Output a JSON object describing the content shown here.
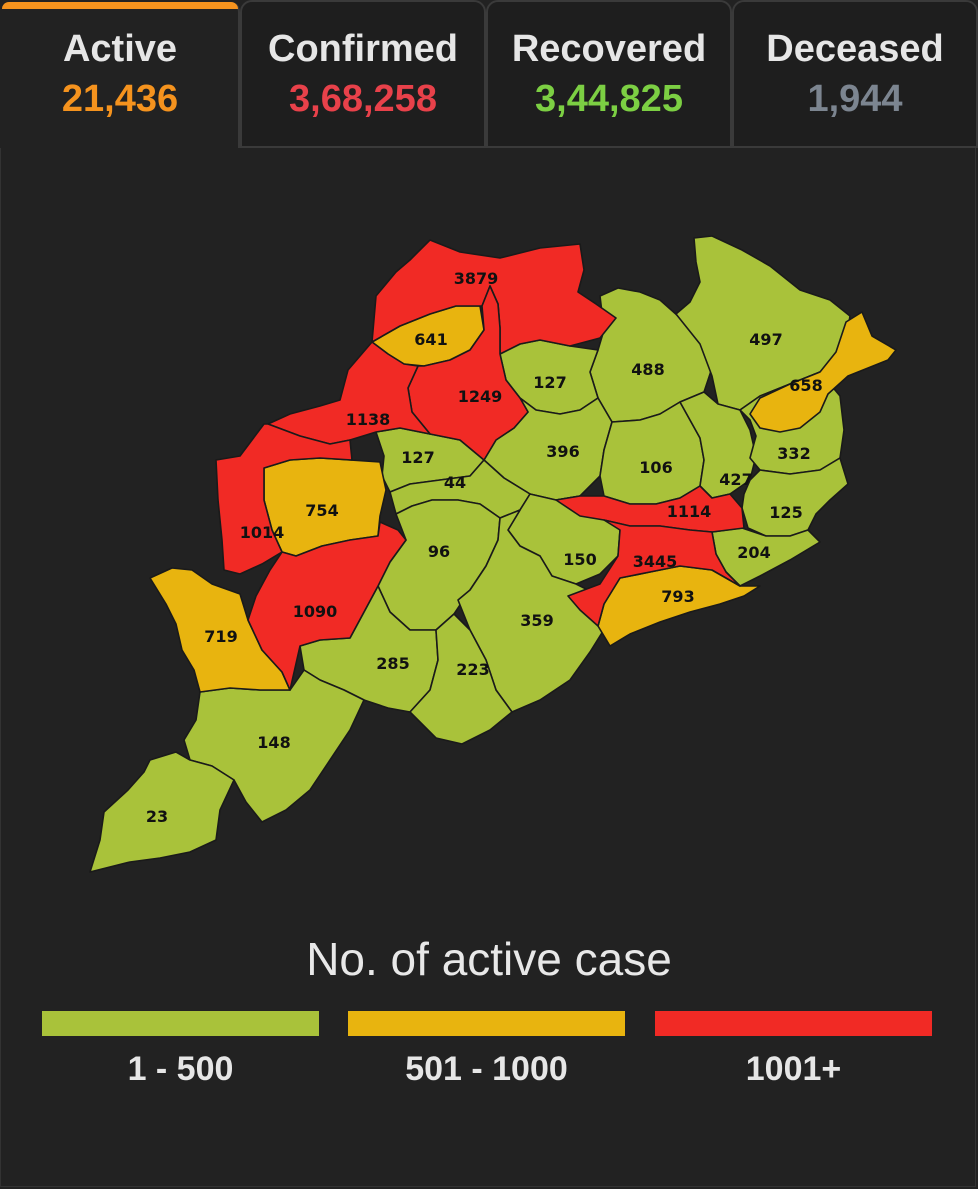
{
  "tabs": [
    {
      "label": "Active",
      "value": "21,436",
      "color": "#f5931e",
      "active": true
    },
    {
      "label": "Confirmed",
      "value": "3,68,258",
      "color": "#e8414a",
      "active": false
    },
    {
      "label": "Recovered",
      "value": "3,44,825",
      "color": "#7ccf43",
      "active": false
    },
    {
      "label": "Deceased",
      "value": "1,944",
      "color": "#7c8590",
      "active": false
    }
  ],
  "map": {
    "districts": [
      {
        "value": "3879",
        "category": "1001+"
      },
      {
        "value": "641",
        "category": "501 - 1000"
      },
      {
        "value": "1138",
        "category": "1001+"
      },
      {
        "value": "1249",
        "category": "1001+"
      },
      {
        "value": "127",
        "category": "1 - 500"
      },
      {
        "value": "488",
        "category": "1 - 500"
      },
      {
        "value": "497",
        "category": "1 - 500"
      },
      {
        "value": "658",
        "category": "501 - 1000"
      },
      {
        "value": "127",
        "category": "1 - 500"
      },
      {
        "value": "44",
        "category": "1 - 500"
      },
      {
        "value": "396",
        "category": "1 - 500"
      },
      {
        "value": "106",
        "category": "1 - 500"
      },
      {
        "value": "427",
        "category": "1 - 500"
      },
      {
        "value": "332",
        "category": "1 - 500"
      },
      {
        "value": "754",
        "category": "501 - 1000"
      },
      {
        "value": "1014",
        "category": "1001+"
      },
      {
        "value": "96",
        "category": "1 - 500"
      },
      {
        "value": "1114",
        "category": "1001+"
      },
      {
        "value": "125",
        "category": "1 - 500"
      },
      {
        "value": "150",
        "category": "1 - 500"
      },
      {
        "value": "3445",
        "category": "1001+"
      },
      {
        "value": "204",
        "category": "1 - 500"
      },
      {
        "value": "1090",
        "category": "1001+"
      },
      {
        "value": "793",
        "category": "501 - 1000"
      },
      {
        "value": "719",
        "category": "501 - 1000"
      },
      {
        "value": "359",
        "category": "1 - 500"
      },
      {
        "value": "285",
        "category": "1 - 500"
      },
      {
        "value": "223",
        "category": "1 - 500"
      },
      {
        "value": "148",
        "category": "1 - 500"
      },
      {
        "value": "23",
        "category": "1 - 500"
      }
    ]
  },
  "legend": {
    "title": "No. of active case",
    "items": [
      {
        "label": "1 - 500",
        "color": "#a9c23a"
      },
      {
        "label": "501 - 1000",
        "color": "#e8b40f"
      },
      {
        "label": "1001+",
        "color": "#f12a25"
      }
    ]
  }
}
